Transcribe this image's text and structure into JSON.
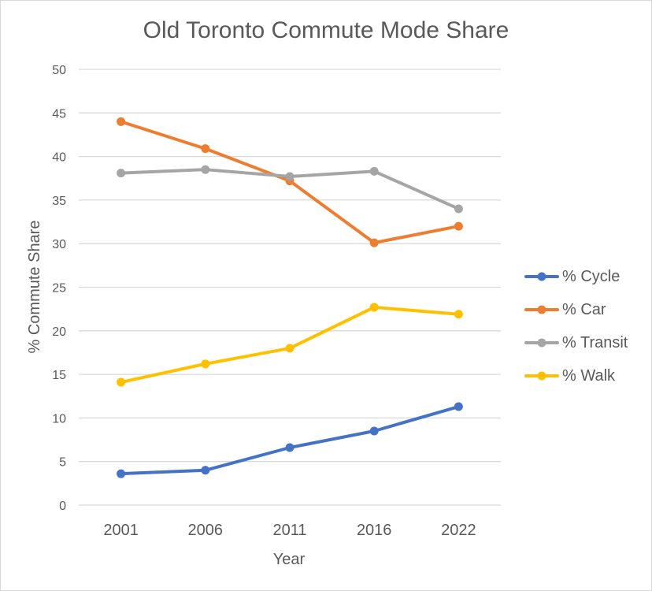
{
  "chart_data": {
    "type": "line",
    "title": "Old Toronto Commute Mode Share",
    "xlabel": "Year",
    "ylabel": "% Commute Share",
    "categories": [
      "2001",
      "2006",
      "2011",
      "2016",
      "2022"
    ],
    "ylim": [
      0,
      50
    ],
    "yticks": [
      0,
      5,
      10,
      15,
      20,
      25,
      30,
      35,
      40,
      45,
      50
    ],
    "grid": true,
    "legend_position": "right",
    "series": [
      {
        "name": "% Cycle",
        "color": "#4472c4",
        "values": [
          3.6,
          4.0,
          6.6,
          8.5,
          11.3
        ]
      },
      {
        "name": "% Car",
        "color": "#ed7d31",
        "values": [
          44.0,
          40.9,
          37.2,
          30.1,
          32.0
        ]
      },
      {
        "name": "% Transit",
        "color": "#a5a5a5",
        "values": [
          38.1,
          38.5,
          37.7,
          38.3,
          34.0
        ]
      },
      {
        "name": "% Walk",
        "color": "#ffc000",
        "values": [
          14.1,
          16.2,
          18.0,
          22.7,
          21.9
        ]
      }
    ]
  }
}
